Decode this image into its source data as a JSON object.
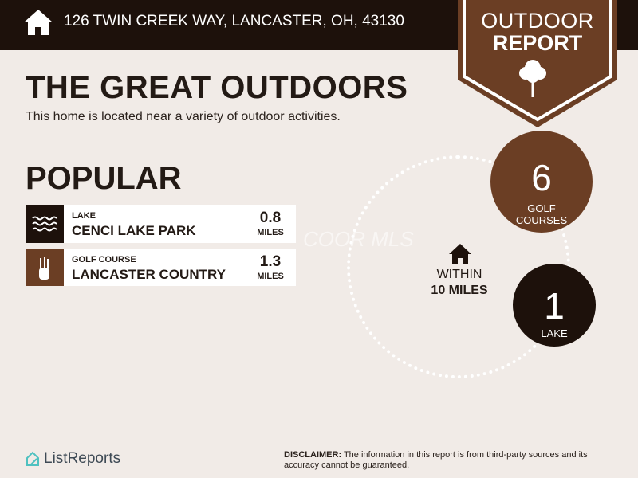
{
  "header": {
    "address": "126 TWIN CREEK WAY, LANCASTER, OH, 43130",
    "icon": "home-icon"
  },
  "badge": {
    "line1": "OUTDOOR",
    "line2": "REPORT",
    "icon": "tree-icon",
    "color": "#6b3e24"
  },
  "title": "THE GREAT OUTDOORS",
  "subtitle": "This home is located near a variety of outdoor activities.",
  "popular": {
    "heading": "POPULAR",
    "items": [
      {
        "category": "LAKE",
        "name": "CENCI LAKE PARK",
        "distance": "0.8",
        "unit": "MILES",
        "icon": "waves-icon",
        "color": "#1d110b"
      },
      {
        "category": "GOLF COURSE",
        "name": "LANCASTER COUNTRY CLUB",
        "distance": "1.3",
        "unit": "MILES",
        "icon": "golf-bag-icon",
        "color": "#6b3e24"
      }
    ]
  },
  "radius": {
    "line1": "WITHIN",
    "line2": "10 MILES",
    "icon": "home-icon"
  },
  "counts": [
    {
      "number": "6",
      "label1": "GOLF",
      "label2": "COURSES",
      "color": "#6b3e24"
    },
    {
      "number": "1",
      "label1": "LAKE",
      "color": "#1d110b"
    }
  ],
  "watermark": "COOR MLS",
  "footer": {
    "logo": "ListReports",
    "disclaimer_label": "DISCLAIMER:",
    "disclaimer_text": " The information in this report is from third-party sources and its accuracy cannot be guaranteed."
  }
}
